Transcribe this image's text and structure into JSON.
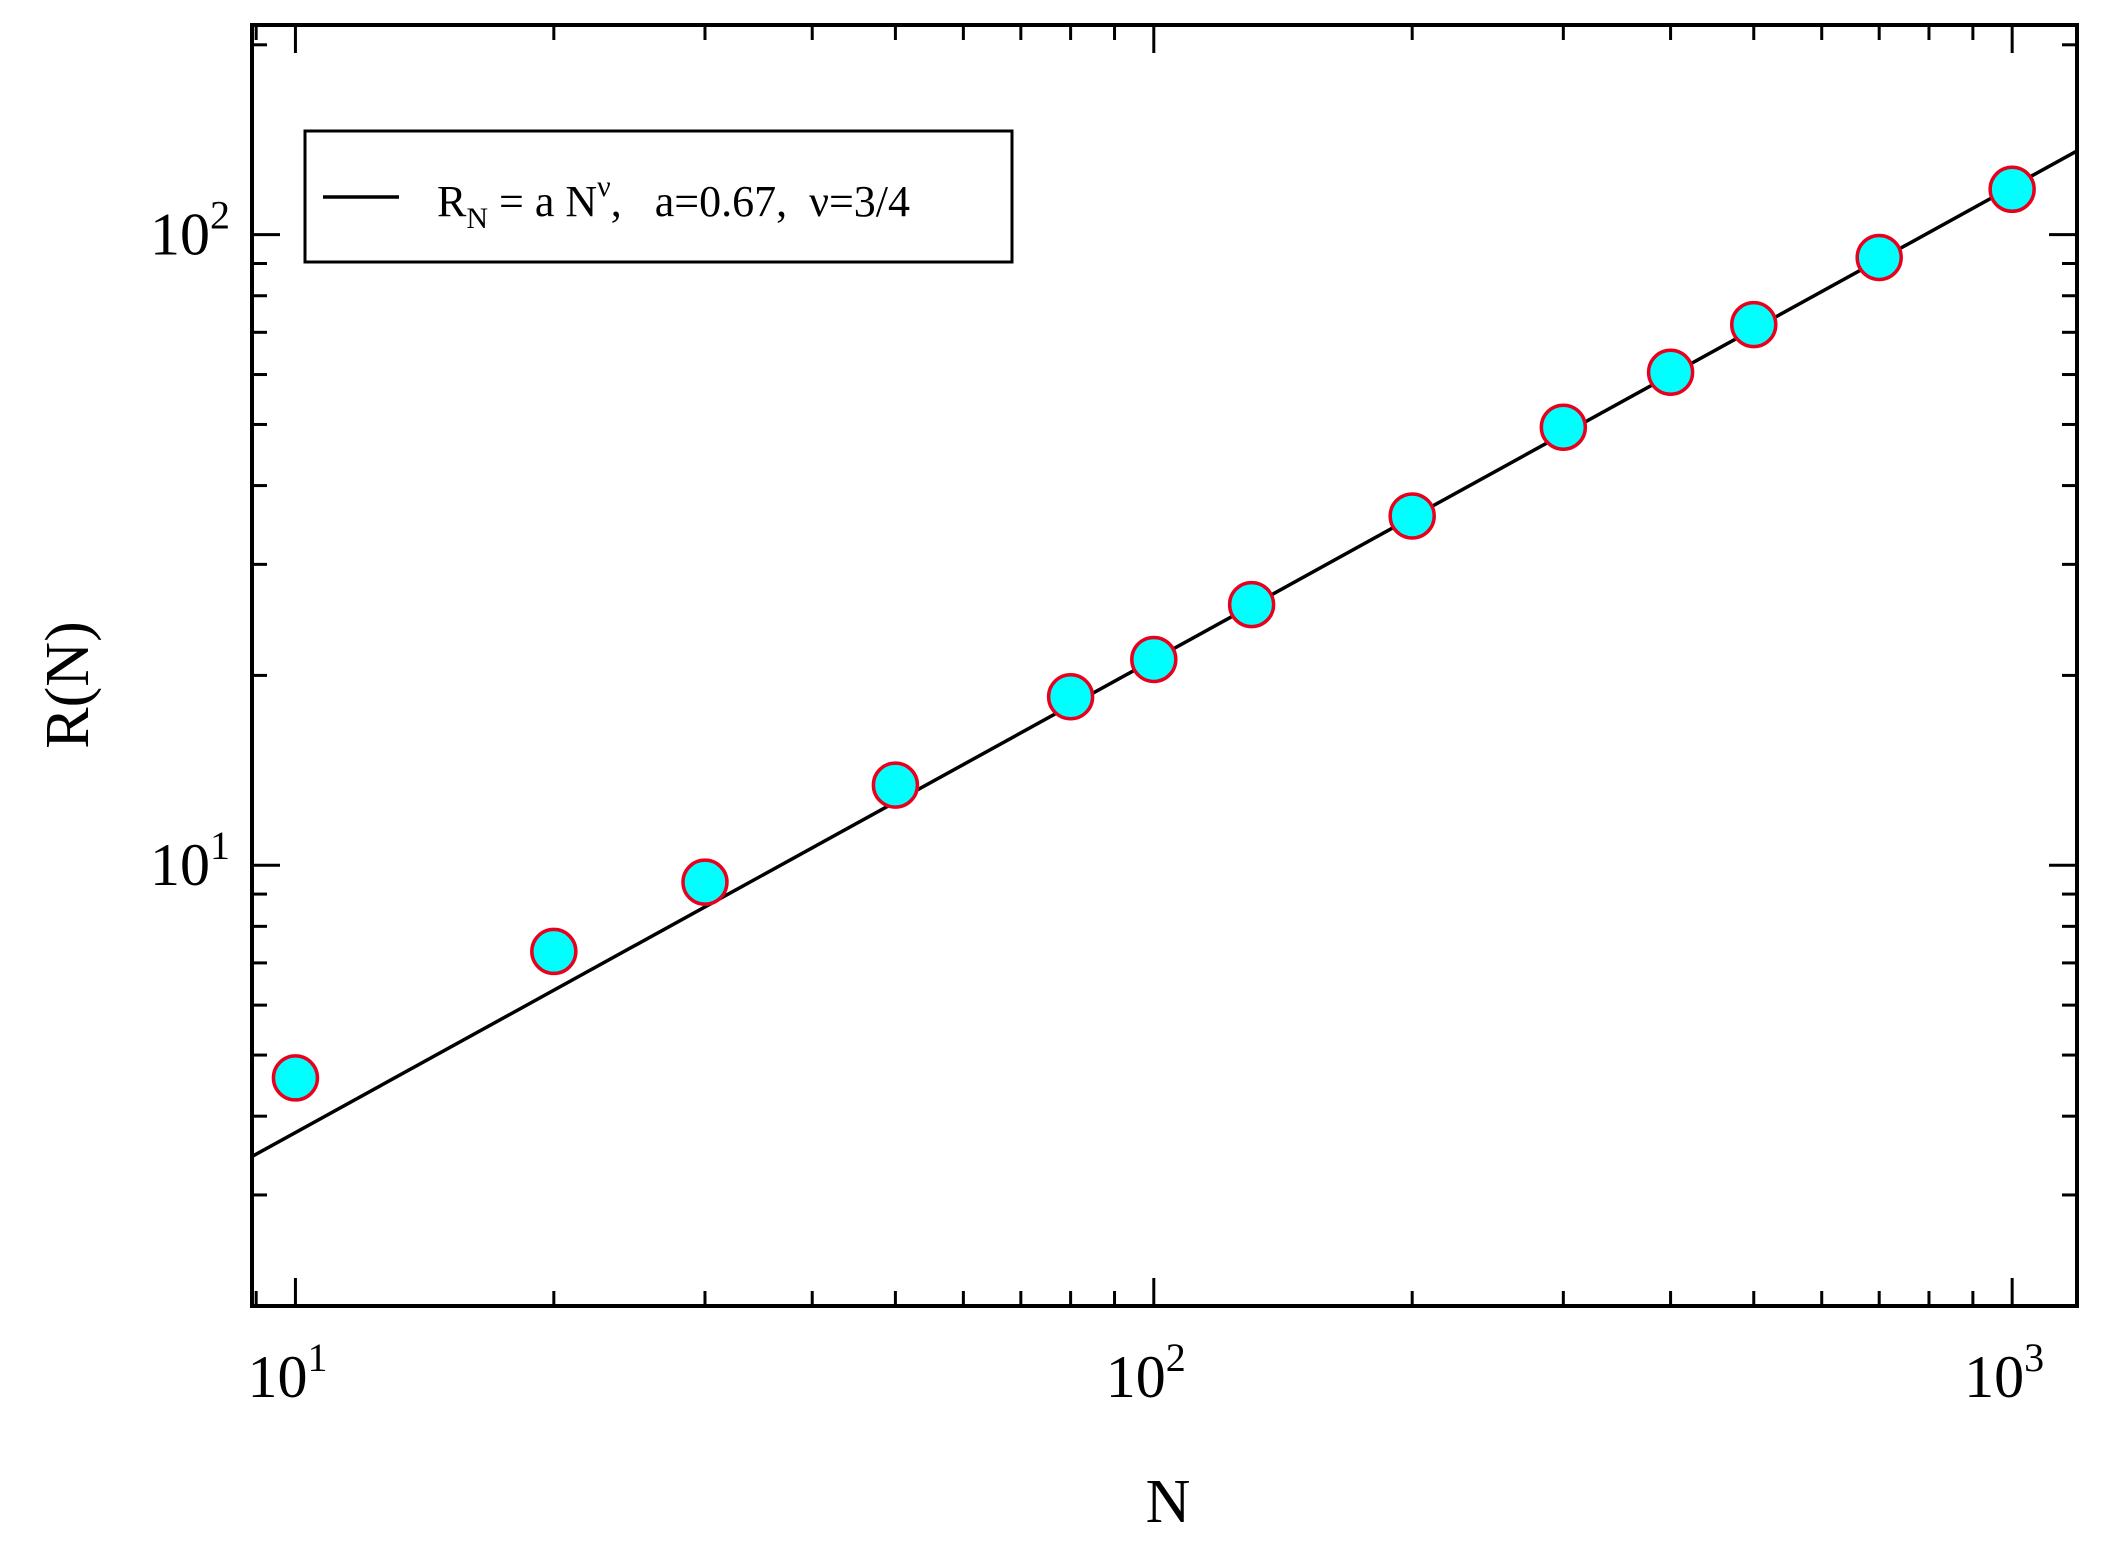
{
  "chart_data": {
    "type": "scatter",
    "title": "",
    "xlabel": "N",
    "ylabel": "R(N)",
    "xscale": "log",
    "yscale": "log",
    "xlim": [
      8.9,
      1190
    ],
    "ylim": [
      2.0,
      215
    ],
    "x_ticks": [
      {
        "value": 10,
        "base": "10",
        "exp": "1"
      },
      {
        "value": 100,
        "base": "10",
        "exp": "2"
      },
      {
        "value": 1000,
        "base": "10",
        "exp": "3"
      }
    ],
    "y_ticks": [
      {
        "value": 10,
        "base": "10",
        "exp": "1"
      },
      {
        "value": 100,
        "base": "10",
        "exp": "2"
      }
    ],
    "grid": false,
    "series": [
      {
        "kind": "points",
        "x": [
          10,
          20,
          30,
          50,
          80,
          100,
          130,
          200,
          300,
          400,
          500,
          700,
          1000
        ],
        "y": [
          4.6,
          7.3,
          9.4,
          13.4,
          18.5,
          21.2,
          25.9,
          35.8,
          49.5,
          60.5,
          72.0,
          92.0,
          118.0
        ],
        "marker_fill": "#00ffff",
        "marker_edge": "#e8001c"
      },
      {
        "kind": "line",
        "a": 0.67,
        "nu": 0.75,
        "color": "#000000"
      }
    ],
    "legend": {
      "position": "top-left",
      "entries": [
        {
          "r": "R",
          "r_sub": "N",
          "eq": " = a N",
          "nu_sup": "ν",
          "rest": ",   a=0.67,  ν=3/4"
        }
      ]
    }
  }
}
